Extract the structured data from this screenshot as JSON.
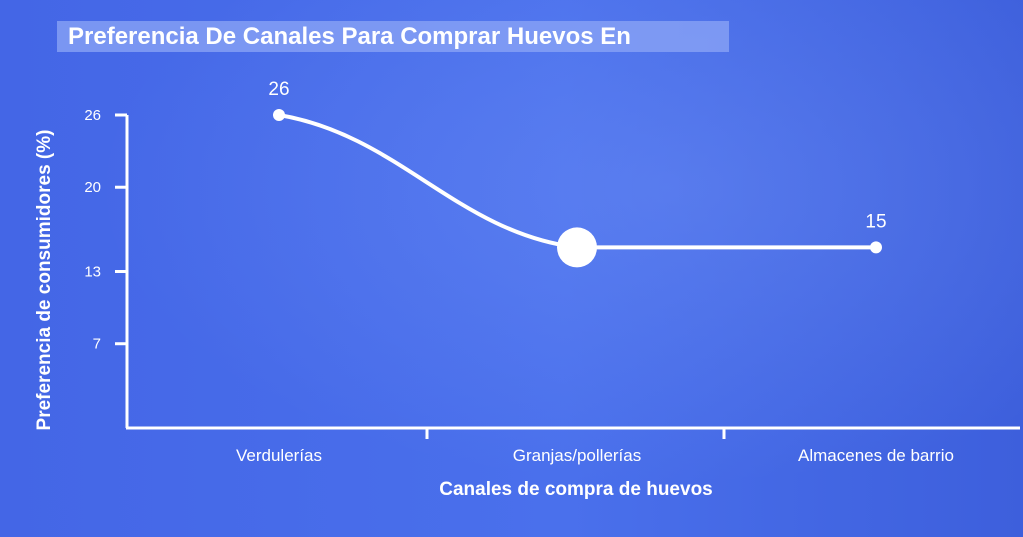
{
  "chart_data": {
    "type": "line",
    "title": "Preferencia De Canales Para Comprar Huevos En",
    "xlabel": "Canales de compra de huevos",
    "ylabel": "Preferencia de consumidores (%)",
    "categories": [
      "Verdulerías",
      "Granjas/pollerías",
      "Almacenes de barrio"
    ],
    "series": [
      {
        "values": [
          26,
          15,
          15
        ]
      }
    ],
    "data_labels": [
      "26",
      "",
      "15"
    ],
    "highlighted_index": 1,
    "yticks": [
      7,
      13,
      20,
      26
    ],
    "ylim": [
      0,
      26
    ],
    "grid": false,
    "legend": "none",
    "colors": {
      "background": "#4a6ee8",
      "line": "#ffffff",
      "axis": "#ffffff"
    }
  }
}
